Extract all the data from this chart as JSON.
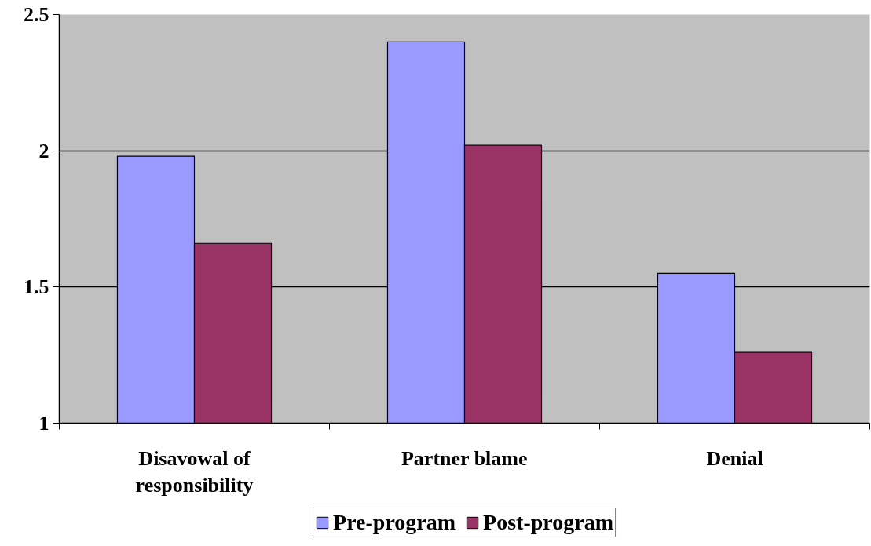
{
  "chart_data": {
    "type": "bar",
    "categories": [
      "Disavowal of\nresponsibility",
      "Partner blame",
      "Denial"
    ],
    "series": [
      {
        "name": "Pre-program",
        "color": "#9999ff",
        "values": [
          1.98,
          2.4,
          1.55
        ]
      },
      {
        "name": "Post-program",
        "color": "#993366",
        "values": [
          1.66,
          2.02,
          1.26
        ]
      }
    ],
    "ylim": [
      1,
      2.5
    ],
    "yticks": [
      1,
      1.5,
      2,
      2.5
    ],
    "grid": "y",
    "legend": "bottom"
  }
}
